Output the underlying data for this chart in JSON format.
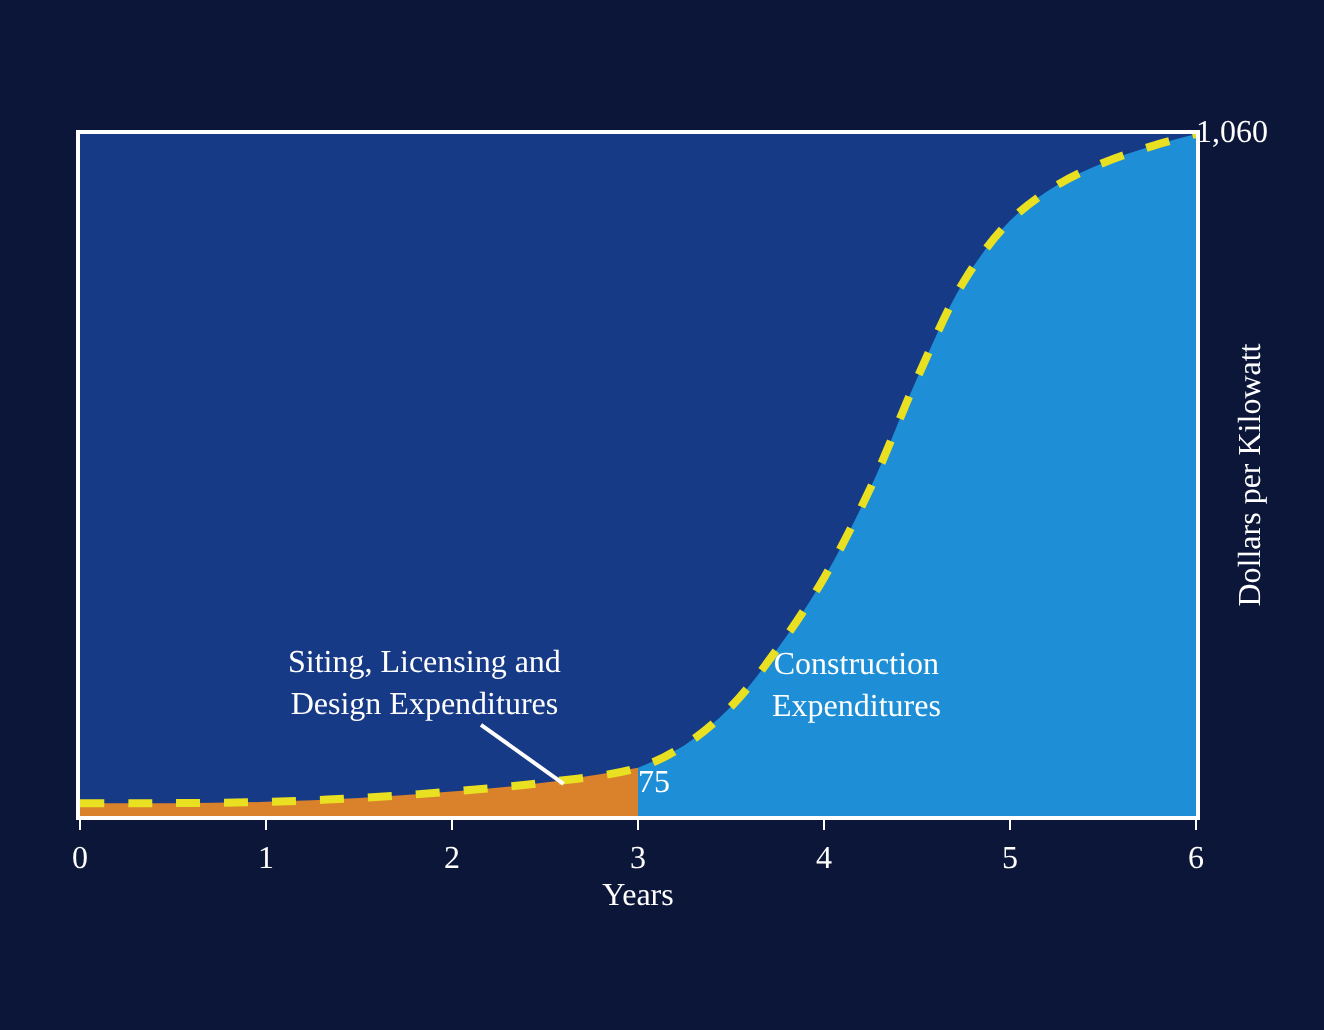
{
  "chart_data": {
    "type": "area",
    "xlabel": "Years",
    "ylabel": "Dollars per Kilowatt",
    "xlim": [
      0,
      6
    ],
    "xticks": [
      0,
      1,
      2,
      3,
      4,
      5,
      6
    ],
    "ylim": [
      0,
      1060
    ],
    "tick_labels": "x",
    "grid": false,
    "series": [
      {
        "color": "#d9822b",
        "x": [
          0,
          0.5,
          1,
          1.5,
          2,
          2.5,
          3
        ],
        "values": [
          20,
          20,
          22,
          28,
          38,
          52,
          75
        ]
      },
      {
        "color": "#1e8fd6",
        "x": [
          3,
          3.25,
          3.5,
          3.75,
          4,
          4.25,
          4.5,
          4.75,
          5,
          5.25,
          5.5,
          5.75,
          6
        ],
        "values": [
          75,
          110,
          170,
          260,
          370,
          510,
          680,
          830,
          925,
          980,
          1015,
          1040,
          1060
        ]
      },
      {
        "type": "line",
        "color": "#e8e020",
        "line_style": "dashed",
        "x": [
          0,
          0.5,
          1,
          1.5,
          2,
          2.5,
          3,
          3.25,
          3.5,
          3.75,
          4,
          4.25,
          4.5,
          4.75,
          5,
          5.25,
          5.5,
          5.75,
          6
        ],
        "values": [
          20,
          20,
          22,
          28,
          38,
          52,
          75,
          110,
          170,
          260,
          370,
          510,
          680,
          830,
          925,
          980,
          1015,
          1040,
          1060
        ],
        "value_labels": [
          null,
          null,
          null,
          null,
          null,
          null,
          "75",
          null,
          null,
          null,
          null,
          null,
          null,
          null,
          null,
          null,
          null,
          null,
          "1,060"
        ]
      }
    ],
    "annotations": [
      {
        "text": "Siting, Licensing and\nDesign Expenditures",
        "x": 2.6,
        "y": 50
      },
      "Construction\nExpenditures"
    ]
  }
}
